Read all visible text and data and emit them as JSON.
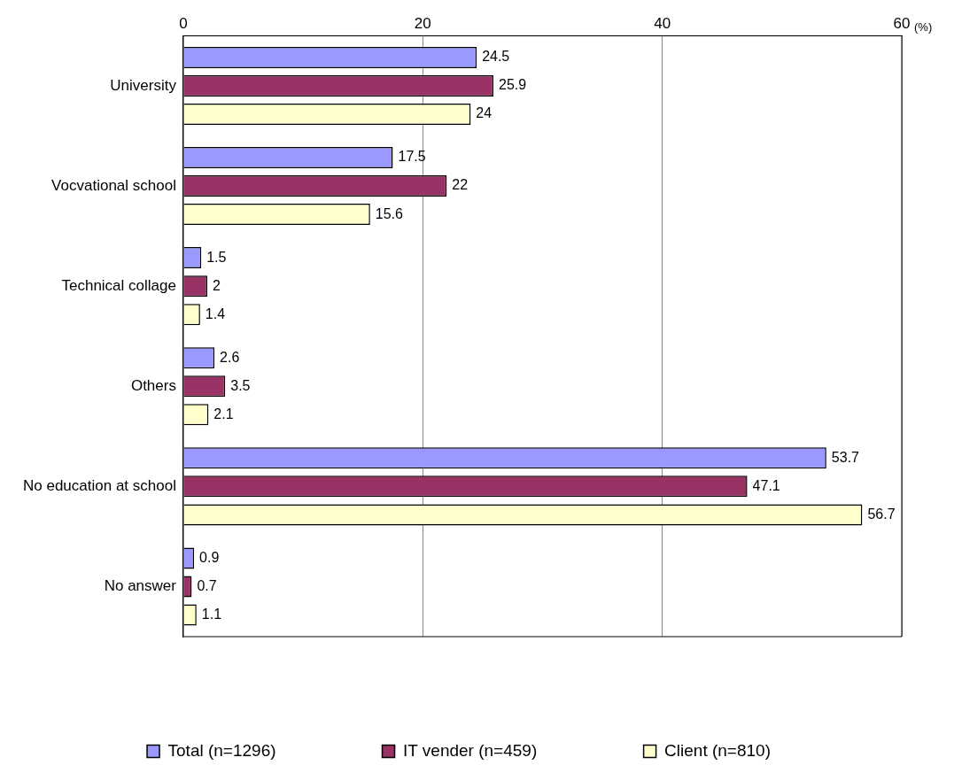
{
  "chart_data": {
    "type": "bar",
    "orientation": "horizontal",
    "xlabel": "(%)",
    "categories": [
      "University",
      "Vocvational school",
      "Technical collage",
      "Others",
      "No education at school",
      "No answer"
    ],
    "series": [
      {
        "name": "Total (n=1296)",
        "color": "#9999ff",
        "values": [
          24.5,
          17.5,
          1.5,
          2.6,
          53.7,
          0.9
        ]
      },
      {
        "name": "IT vender (n=459)",
        "color": "#993366",
        "values": [
          25.9,
          22,
          2,
          3.5,
          47.1,
          0.7
        ]
      },
      {
        "name": "Client (n=810)",
        "color": "#ffffcc",
        "values": [
          24,
          15.6,
          1.4,
          2.1,
          56.7,
          1.1
        ]
      }
    ],
    "xlim": [
      0,
      60
    ],
    "xticks": [
      0,
      20,
      40,
      60
    ],
    "grid": "x",
    "legend": "bottom",
    "data_labels": true
  }
}
